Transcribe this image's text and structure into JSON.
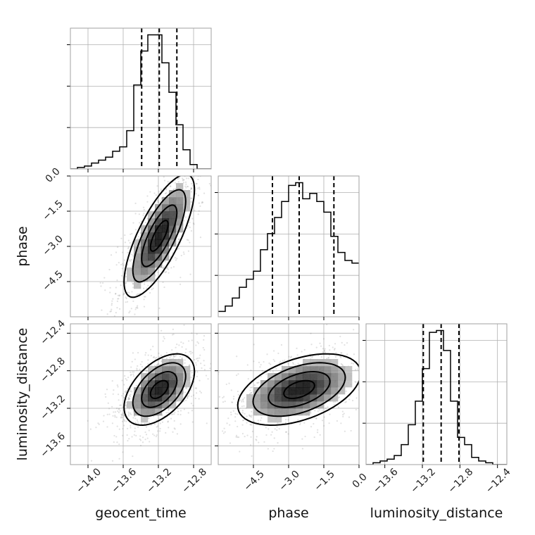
{
  "chart_data": {
    "type": "corner",
    "parameters": [
      "geocent_time",
      "phase",
      "luminosity_distance"
    ],
    "axes": {
      "geocent_time": {
        "label": "geocent_time",
        "range": [
          -14.2,
          -12.6
        ],
        "ticks": [
          -14.0,
          -13.6,
          -13.2,
          -12.8
        ],
        "tick_labels": [
          "−14.0",
          "−13.6",
          "−13.2",
          "−12.8"
        ]
      },
      "phase": {
        "label": "phase",
        "range": [
          -6.0,
          0.0
        ],
        "ticks": [
          -4.5,
          -3.0,
          -1.5,
          0.0
        ],
        "tick_labels": [
          "−4.5",
          "−3.0",
          "−1.5",
          "0.0"
        ]
      },
      "luminosity_distance": {
        "label": "luminosity_distance",
        "range": [
          -13.8,
          -12.3
        ],
        "ticks": [
          -13.6,
          -13.2,
          -12.8,
          -12.4
        ],
        "tick_labels": [
          "−13.6",
          "−13.2",
          "−12.8",
          "−12.4"
        ]
      }
    },
    "quantiles": {
      "geocent_time": [
        -13.39,
        -13.19,
        -12.99
      ],
      "phase": [
        -3.69,
        -2.55,
        -1.07
      ],
      "luminosity_distance": [
        -13.19,
        -13.0,
        -12.81
      ]
    },
    "histograms": {
      "geocent_time": {
        "range": [
          -14.2,
          -12.6
        ],
        "counts": [
          0,
          1,
          2,
          4,
          6,
          8,
          12,
          15,
          26,
          57,
          80,
          91,
          91,
          72,
          52,
          30,
          13,
          3,
          0,
          0
        ]
      },
      "phase": {
        "range": [
          -6.0,
          0.0
        ],
        "counts": [
          2,
          4,
          7,
          11,
          14,
          17,
          25,
          31,
          37,
          43,
          49,
          50,
          44,
          46,
          43,
          39,
          30,
          24,
          21,
          20
        ]
      },
      "luminosity_distance": {
        "range": [
          -13.8,
          -12.3
        ],
        "counts": [
          0,
          1,
          2,
          3,
          5,
          11,
          22,
          35,
          53,
          73,
          74,
          63,
          35,
          15,
          11,
          4,
          2,
          1,
          0,
          0
        ]
      }
    },
    "pairs": [
      {
        "x": "geocent_time",
        "y": "phase",
        "correlation": 0.75
      },
      {
        "x": "geocent_time",
        "y": "luminosity_distance",
        "correlation": 0.5
      },
      {
        "x": "phase",
        "y": "luminosity_distance",
        "correlation": 0.45
      }
    ],
    "grid": true,
    "colors": {
      "lines": "#000000",
      "scatter": "#777777",
      "grid": "#b0b0b0"
    }
  }
}
